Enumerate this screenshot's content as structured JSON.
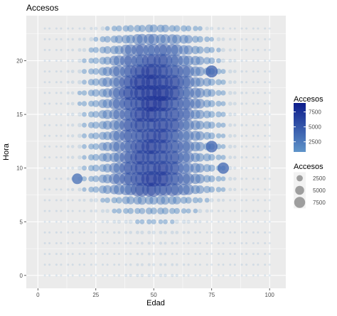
{
  "chart_data": {
    "type": "scatter",
    "title": "Accesos",
    "xlabel": "Edad",
    "ylabel": "Hora",
    "xlim": [
      -5,
      107
    ],
    "ylim": [
      -1.2,
      24.2
    ],
    "x_ticks": [
      0,
      25,
      50,
      75,
      100
    ],
    "y_ticks": [
      0,
      5,
      10,
      15,
      20
    ],
    "x_tick_labels": [
      "0",
      "25",
      "50",
      "75",
      "100"
    ],
    "y_tick_labels": [
      "0",
      "5",
      "10",
      "15",
      "20"
    ],
    "grid": true,
    "background": "#ebebeb",
    "hours": [
      0,
      1,
      2,
      3,
      4,
      5,
      6,
      7,
      8,
      9,
      10,
      11,
      12,
      13,
      14,
      15,
      16,
      17,
      18,
      19,
      20,
      21,
      22,
      23
    ],
    "x_points": [
      3,
      5,
      8,
      10,
      13,
      15,
      18,
      20,
      23,
      25,
      28,
      30,
      33,
      35,
      38,
      40,
      43,
      45,
      48,
      50,
      53,
      55,
      58,
      60,
      63,
      65,
      68,
      70,
      73,
      75,
      78,
      80,
      83,
      85,
      88,
      90,
      93,
      95,
      98,
      100
    ],
    "hour_weights": [
      0.04,
      0.03,
      0.025,
      0.03,
      0.05,
      0.09,
      0.17,
      0.3,
      0.72,
      0.85,
      0.82,
      0.8,
      0.82,
      0.8,
      0.82,
      0.85,
      0.9,
      0.95,
      0.92,
      0.85,
      0.72,
      0.58,
      0.42,
      0.22
    ],
    "age_peak": 50,
    "max_value": 9000,
    "color_scale": {
      "low": "#5f94c9",
      "high": "#0d1d8c"
    },
    "highlight_points": [
      {
        "x": 17,
        "y": 9,
        "value": 3500
      },
      {
        "x": 75,
        "y": 19,
        "value": 4500
      },
      {
        "x": 75,
        "y": 12,
        "value": 4200
      },
      {
        "x": 80,
        "y": 10,
        "value": 4000
      }
    ],
    "legends": [
      {
        "kind": "colorbar",
        "title": "Accesos",
        "breaks": [
          2500,
          5000,
          7500
        ],
        "labels": [
          "2500",
          "5000",
          "7500"
        ],
        "range": [
          800,
          9000
        ],
        "position": "right"
      },
      {
        "kind": "size",
        "title": "Accesos",
        "breaks": [
          2500,
          5000,
          7500
        ],
        "labels": [
          "2500",
          "5000",
          "7500"
        ],
        "color": "#666666",
        "position": "right"
      }
    ]
  }
}
